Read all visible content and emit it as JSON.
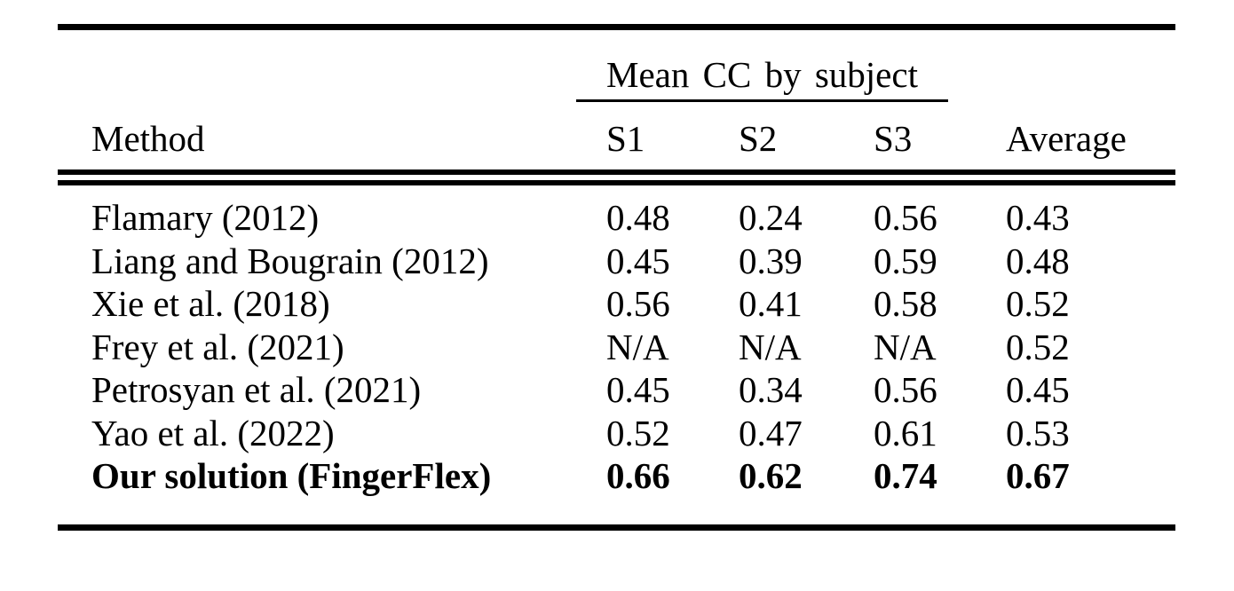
{
  "table": {
    "span_header": "Mean CC by subject",
    "columns": {
      "method": "Method",
      "s1": "S1",
      "s2": "S2",
      "s3": "S3",
      "average": "Average"
    },
    "rows": [
      {
        "method": "Flamary (2012)",
        "s1": "0.48",
        "s2": "0.24",
        "s3": "0.56",
        "average": "0.43"
      },
      {
        "method": "Liang and Bougrain (2012)",
        "s1": "0.45",
        "s2": "0.39",
        "s3": "0.59",
        "average": "0.48"
      },
      {
        "method": "Xie et al. (2018)",
        "s1": "0.56",
        "s2": "0.41",
        "s3": "0.58",
        "average": "0.52"
      },
      {
        "method": "Frey et al. (2021)",
        "s1": "N/A",
        "s2": "N/A",
        "s3": "N/A",
        "average": "0.52"
      },
      {
        "method": "Petrosyan et al. (2021)",
        "s1": "0.45",
        "s2": "0.34",
        "s3": "0.56",
        "average": "0.45"
      },
      {
        "method": "Yao et al. (2022)",
        "s1": "0.52",
        "s2": "0.47",
        "s3": "0.61",
        "average": "0.53"
      },
      {
        "method": "Our solution (FingerFlex)",
        "s1": "0.66",
        "s2": "0.62",
        "s3": "0.74",
        "average": "0.67",
        "emphasis": "bold"
      }
    ]
  },
  "colors": {
    "background": "#ffffff",
    "text": "#000000",
    "rule": "#000000"
  }
}
